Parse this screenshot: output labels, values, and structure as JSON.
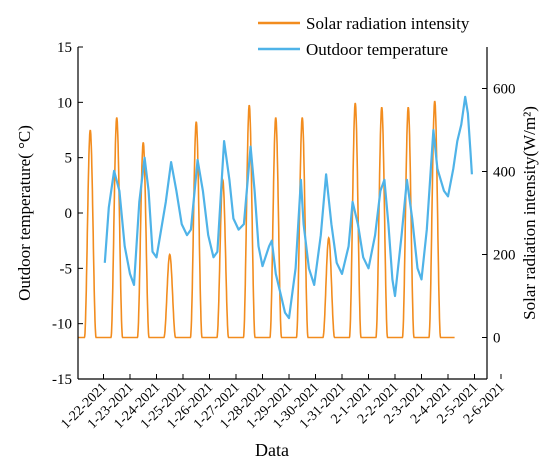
{
  "chart_data": {
    "type": "line",
    "title": "",
    "xlabel": "Data",
    "ylabel_left": "Outdoor temperature(  °C)",
    "ylabel_right": "Solar radiation intensity(W/m²)",
    "x_ticks": [
      "1-22-2021",
      "1-23-2021",
      "1-24-2021",
      "1-25-2021",
      "1-26-2021",
      "1-27-2021",
      "1-28-2021",
      "1-29-2021",
      "1-30-2021",
      "1-31-2021",
      "2-1-2021",
      "2-2-2021",
      "2-3-2021",
      "2-4-2021",
      "2-5-2021",
      "2-6-2021"
    ],
    "x_range": [
      "1-22-2021",
      "2-6-2021"
    ],
    "ylim_left": [
      -15,
      15
    ],
    "yticks_left": [
      -15,
      -10,
      -5,
      0,
      5,
      10,
      15
    ],
    "ylim_right": [
      -100,
      700
    ],
    "yticks_right": [
      0,
      200,
      400,
      600
    ],
    "grid": false,
    "legend_position": "top-right",
    "series": [
      {
        "name": "Solar radiation intensity",
        "axis": "right",
        "color": "#f28c1e",
        "note_daily_peaks": true,
        "daily_peaks": [
          {
            "date": "1-22-2021",
            "peak": 500
          },
          {
            "date": "1-23-2021",
            "peak": 530
          },
          {
            "date": "1-24-2021",
            "peak": 470
          },
          {
            "date": "1-25-2021",
            "peak": 200
          },
          {
            "date": "1-26-2021",
            "peak": 520
          },
          {
            "date": "1-27-2021",
            "peak": 380
          },
          {
            "date": "1-28-2021",
            "peak": 560
          },
          {
            "date": "1-29-2021",
            "peak": 530
          },
          {
            "date": "1-30-2021",
            "peak": 530
          },
          {
            "date": "1-31-2021",
            "peak": 240
          },
          {
            "date": "2-1-2021",
            "peak": 565
          },
          {
            "date": "2-2-2021",
            "peak": 555
          },
          {
            "date": "2-3-2021",
            "peak": 555
          },
          {
            "date": "2-4-2021",
            "peak": 570
          }
        ]
      },
      {
        "name": "Outdoor temperature",
        "axis": "left",
        "color": "#4fb3e8",
        "points": [
          [
            0.05,
            -4.5
          ],
          [
            0.2,
            0.5
          ],
          [
            0.4,
            3.8
          ],
          [
            0.6,
            2.0
          ],
          [
            0.8,
            -3.0
          ],
          [
            1.0,
            -5.5
          ],
          [
            1.15,
            -6.5
          ],
          [
            1.35,
            1.0
          ],
          [
            1.55,
            5.0
          ],
          [
            1.7,
            2.0
          ],
          [
            1.85,
            -3.5
          ],
          [
            2.0,
            -4.0
          ],
          [
            2.35,
            1.0
          ],
          [
            2.55,
            4.6
          ],
          [
            2.75,
            2.0
          ],
          [
            2.95,
            -1.0
          ],
          [
            3.15,
            -2.0
          ],
          [
            3.3,
            -1.5
          ],
          [
            3.55,
            4.8
          ],
          [
            3.75,
            2.0
          ],
          [
            3.95,
            -2.0
          ],
          [
            4.15,
            -4.0
          ],
          [
            4.3,
            -3.5
          ],
          [
            4.55,
            6.5
          ],
          [
            4.75,
            3.0
          ],
          [
            4.9,
            -0.5
          ],
          [
            5.1,
            -1.5
          ],
          [
            5.3,
            -1.0
          ],
          [
            5.55,
            6.0
          ],
          [
            5.7,
            2.0
          ],
          [
            5.85,
            -3.0
          ],
          [
            6.0,
            -4.8
          ],
          [
            6.25,
            -3.0
          ],
          [
            6.35,
            -2.5
          ],
          [
            6.5,
            -5.5
          ],
          [
            6.7,
            -7.5
          ],
          [
            6.85,
            -9.0
          ],
          [
            7.0,
            -9.5
          ],
          [
            7.25,
            -5.0
          ],
          [
            7.45,
            3.0
          ],
          [
            7.55,
            -1.0
          ],
          [
            7.75,
            -5.0
          ],
          [
            7.95,
            -6.5
          ],
          [
            8.2,
            -2.0
          ],
          [
            8.4,
            3.5
          ],
          [
            8.6,
            -1.0
          ],
          [
            8.8,
            -4.5
          ],
          [
            9.0,
            -5.5
          ],
          [
            9.25,
            -3.0
          ],
          [
            9.4,
            1.0
          ],
          [
            9.6,
            -1.0
          ],
          [
            9.8,
            -4.0
          ],
          [
            10.0,
            -5.0
          ],
          [
            10.25,
            -2.0
          ],
          [
            10.45,
            2.0
          ],
          [
            10.6,
            3.0
          ],
          [
            10.75,
            -1.0
          ],
          [
            10.9,
            -6.0
          ],
          [
            11.0,
            -7.5
          ],
          [
            11.25,
            -2.0
          ],
          [
            11.45,
            3.0
          ],
          [
            11.65,
            -0.5
          ],
          [
            11.85,
            -5.0
          ],
          [
            12.0,
            -6.0
          ],
          [
            12.2,
            -1.5
          ],
          [
            12.45,
            7.5
          ],
          [
            12.6,
            4.0
          ],
          [
            12.85,
            2.0
          ],
          [
            13.0,
            1.5
          ],
          [
            13.2,
            4.0
          ],
          [
            13.35,
            6.5
          ],
          [
            13.5,
            8.0
          ],
          [
            13.65,
            10.5
          ],
          [
            13.75,
            9.0
          ],
          [
            13.85,
            5.5
          ],
          [
            13.9,
            3.5
          ]
        ]
      }
    ]
  }
}
